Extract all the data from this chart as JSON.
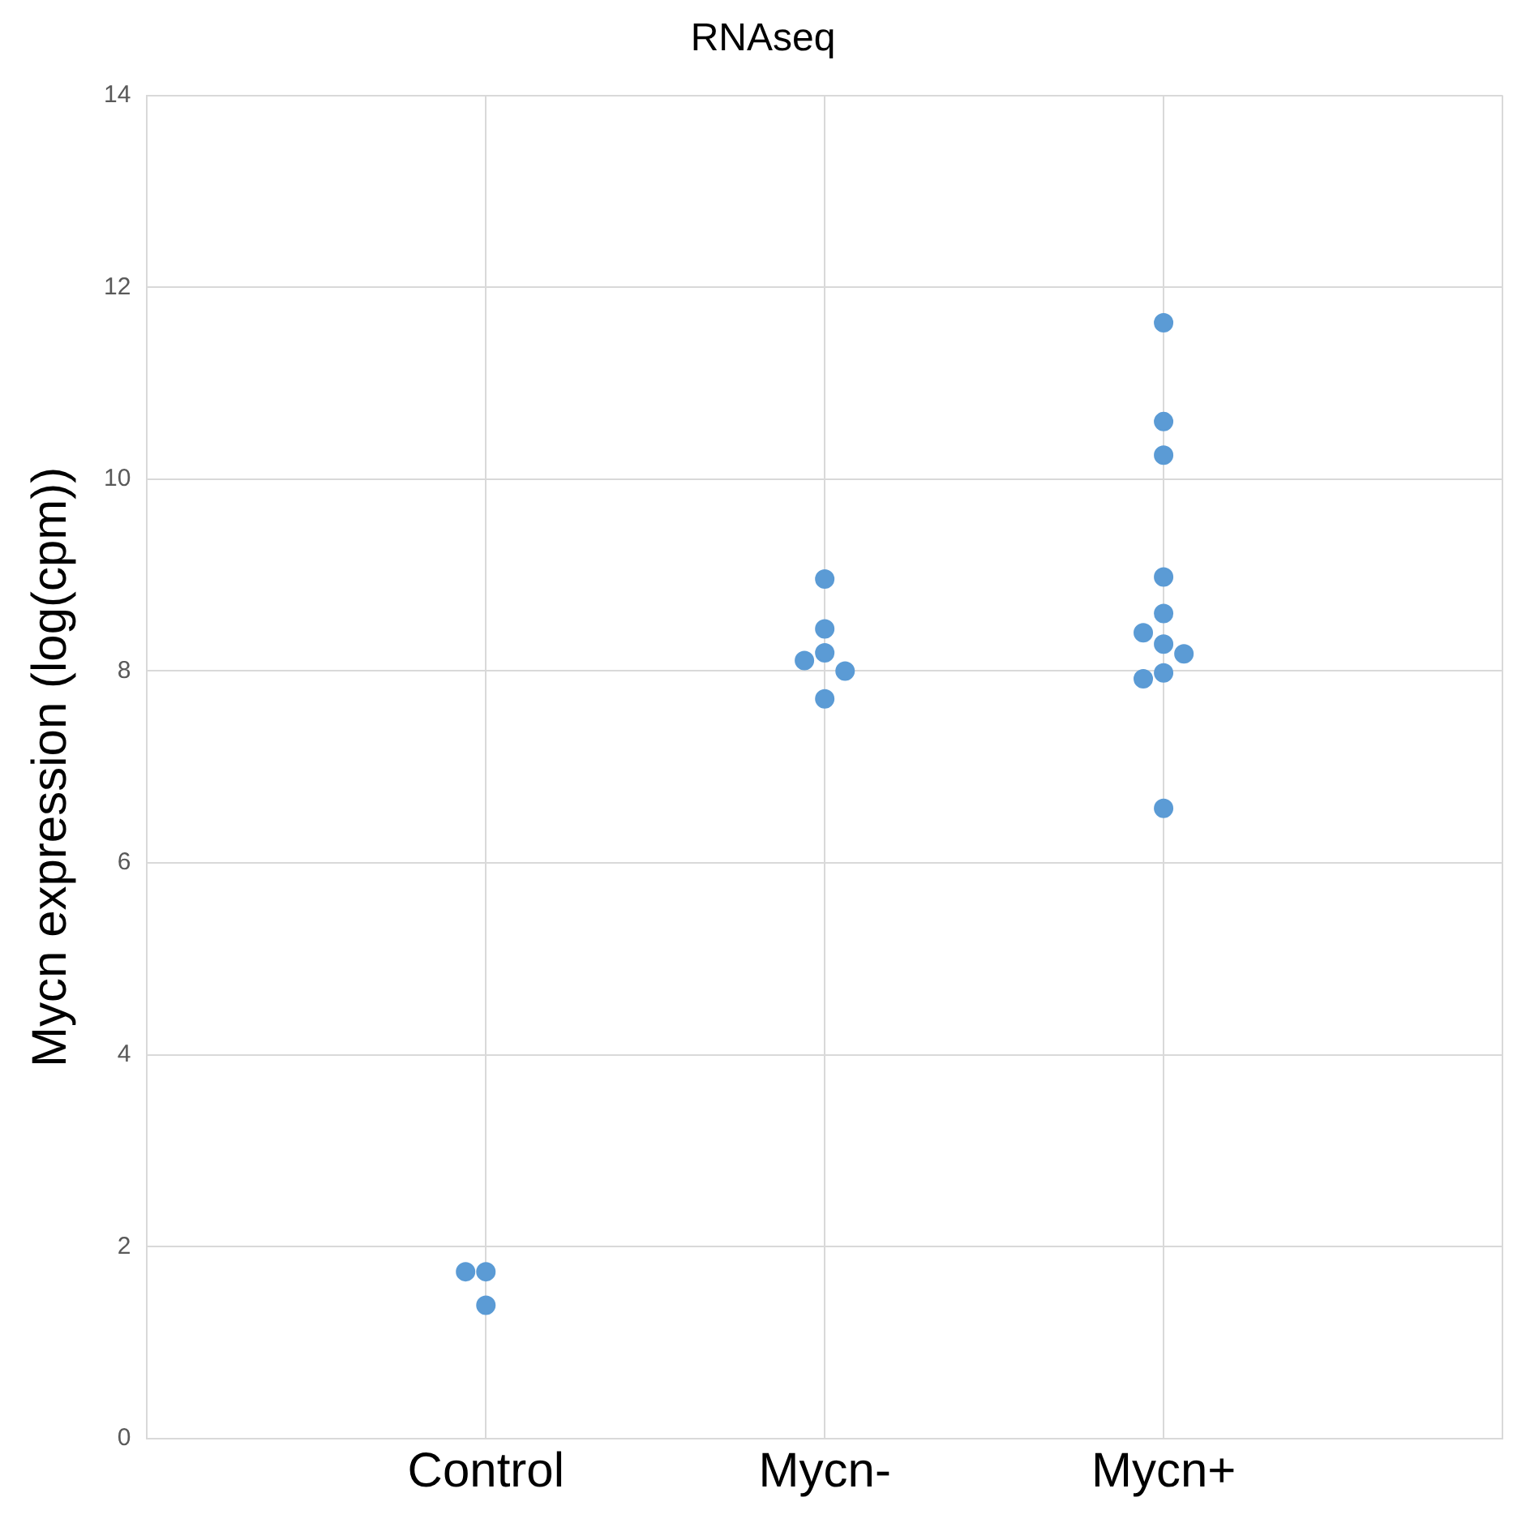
{
  "chart_data": {
    "type": "scatter",
    "title": "RNAseq",
    "ylabel": "Mycn expression (log(cpm))",
    "categories": [
      "Control",
      "Mycn-",
      "Mycn+"
    ],
    "ylim": [
      0,
      14
    ],
    "yticks": [
      0,
      2,
      4,
      6,
      8,
      10,
      12,
      14
    ],
    "grid": true,
    "legend": false,
    "marker": "circle",
    "series": [
      {
        "color": "#5b9bd5",
        "x": [
          "Control",
          "Control",
          "Control",
          "Mycn-",
          "Mycn-",
          "Mycn-",
          "Mycn-",
          "Mycn-",
          "Mycn-",
          "Mycn+",
          "Mycn+",
          "Mycn+",
          "Mycn+",
          "Mycn+",
          "Mycn+",
          "Mycn+",
          "Mycn+",
          "Mycn+",
          "Mycn+",
          "Mycn+"
        ],
        "values": [
          1.74,
          1.74,
          1.39,
          8.96,
          8.44,
          8.19,
          8.11,
          8.0,
          7.71,
          11.63,
          10.6,
          10.25,
          8.98,
          8.6,
          8.4,
          8.28,
          8.18,
          7.98,
          7.92,
          6.57
        ]
      }
    ]
  }
}
